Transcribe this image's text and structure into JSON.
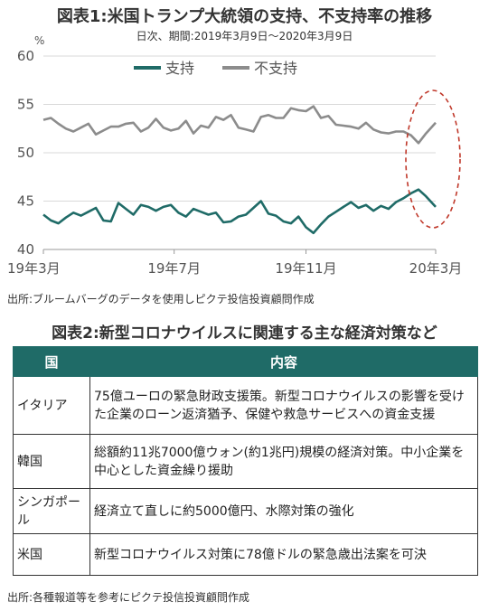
{
  "figure1": {
    "title": "図表1:米国トランプ大統領の支持、不支持率の推移",
    "subtitle": "日次、期間:2019年3月9日～2020年3月9日",
    "source": "出所:ブルームバーグのデータを使用しピクテ投信投資顧問作成"
  },
  "chart_data": {
    "type": "line",
    "y_unit": "%",
    "ylim": [
      40,
      60
    ],
    "y_ticks": [
      "40",
      "45",
      "50",
      "55",
      "60"
    ],
    "x_tick_labels": [
      "19年3月",
      "19年7月",
      "19年11月",
      "20年3月"
    ],
    "x_range": [
      "2019-03-09",
      "2020-03-09"
    ],
    "grid": "horizontal",
    "legend_position": "top-center",
    "highlight": "dashed red ellipse around the most recent values (Feb–Mar 2020)",
    "x": [
      "2019-03-09",
      "2019-03-16",
      "2019-03-23",
      "2019-03-30",
      "2019-04-06",
      "2019-04-13",
      "2019-04-20",
      "2019-04-27",
      "2019-05-04",
      "2019-05-11",
      "2019-05-18",
      "2019-05-25",
      "2019-06-01",
      "2019-06-08",
      "2019-06-15",
      "2019-06-22",
      "2019-06-29",
      "2019-07-06",
      "2019-07-13",
      "2019-07-20",
      "2019-07-27",
      "2019-08-03",
      "2019-08-10",
      "2019-08-17",
      "2019-08-24",
      "2019-08-31",
      "2019-09-07",
      "2019-09-14",
      "2019-09-21",
      "2019-09-28",
      "2019-10-05",
      "2019-10-12",
      "2019-10-19",
      "2019-10-26",
      "2019-11-02",
      "2019-11-09",
      "2019-11-16",
      "2019-11-23",
      "2019-11-30",
      "2019-12-07",
      "2019-12-14",
      "2019-12-21",
      "2019-12-28",
      "2020-01-04",
      "2020-01-11",
      "2020-01-18",
      "2020-01-25",
      "2020-02-01",
      "2020-02-08",
      "2020-02-15",
      "2020-02-22",
      "2020-02-29",
      "2020-03-09"
    ],
    "series": [
      {
        "name": "支持",
        "color": "#1f6b67",
        "values": [
          43.6,
          43.0,
          42.7,
          43.3,
          43.8,
          43.5,
          43.9,
          44.3,
          43.0,
          42.9,
          44.8,
          44.2,
          43.6,
          44.6,
          44.4,
          44.0,
          44.4,
          44.6,
          43.8,
          43.4,
          44.2,
          43.9,
          43.6,
          43.8,
          42.8,
          42.9,
          43.4,
          43.6,
          44.3,
          45.0,
          43.7,
          43.5,
          42.9,
          42.7,
          43.4,
          42.3,
          41.7,
          42.6,
          43.4,
          43.9,
          44.4,
          44.9,
          44.3,
          44.6,
          44.0,
          44.5,
          44.2,
          44.9,
          45.3,
          45.8,
          46.2,
          45.5,
          44.4
        ]
      },
      {
        "name": "不支持",
        "color": "#8c8c8c",
        "values": [
          53.4,
          53.6,
          53.0,
          52.5,
          52.2,
          52.6,
          53.0,
          51.9,
          52.3,
          52.7,
          52.7,
          53.0,
          53.1,
          52.2,
          52.6,
          53.5,
          52.6,
          52.3,
          52.5,
          53.3,
          52.0,
          52.8,
          52.6,
          53.7,
          53.4,
          53.9,
          52.6,
          52.4,
          52.2,
          53.7,
          53.9,
          53.6,
          53.6,
          54.6,
          54.4,
          54.3,
          54.8,
          53.6,
          53.8,
          52.9,
          52.8,
          52.7,
          52.5,
          53.1,
          52.4,
          52.1,
          52.0,
          52.2,
          52.2,
          51.8,
          51.0,
          52.0,
          53.1
        ]
      }
    ]
  },
  "figure2": {
    "title": "図表2:新型コロナウイルスに関連する主な経済対策など",
    "headers": [
      "国",
      "内容"
    ],
    "rows": [
      {
        "country": "イタリア",
        "content": "75億ユーロの緊急財政支援策。新型コロナウイルスの影響を受けた企業のローン返済猶予、保健や救急サービスへの資金支援"
      },
      {
        "country": "韓国",
        "content": "総額約11兆7000億ウォン(約1兆円)規模の経済対策。中小企業を中心とした資金繰り援助"
      },
      {
        "country": "シンガポール",
        "content": "経済立て直しに約5000億円、水際対策の強化"
      },
      {
        "country": "米国",
        "content": "新型コロナウイルス対策に78億ドルの緊急歳出法案を可決"
      }
    ],
    "source": "出所:各種報道等を参考にピクテ投信投資顧問作成"
  }
}
